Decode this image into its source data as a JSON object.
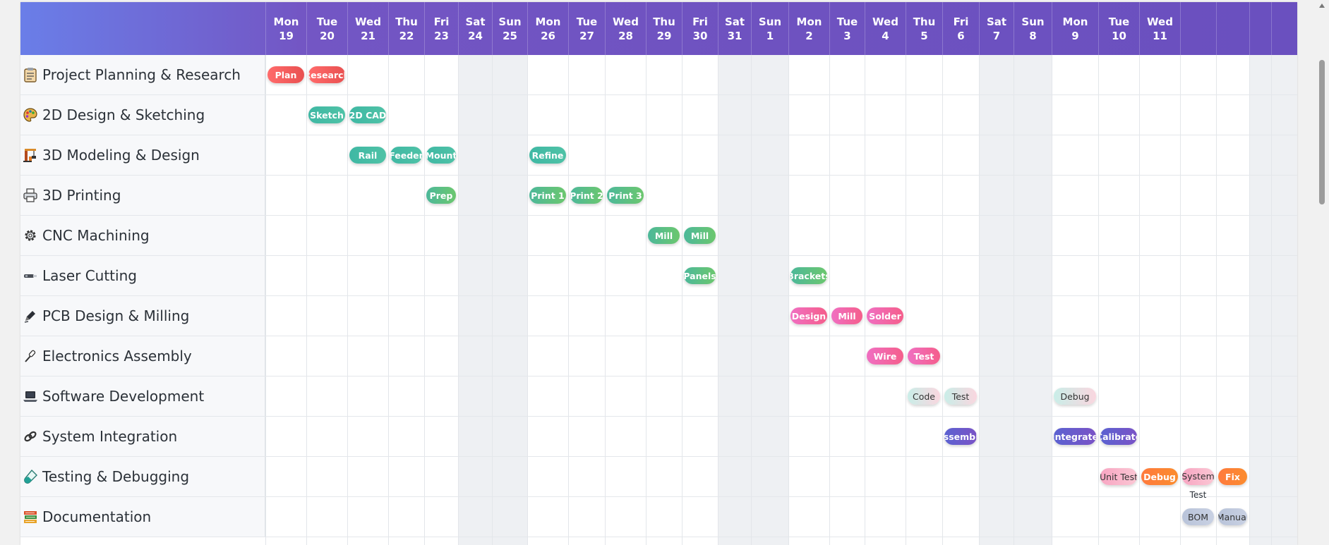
{
  "header_days": [
    {
      "dow": "Mon",
      "day": "19",
      "weekend": false
    },
    {
      "dow": "Tue",
      "day": "20",
      "weekend": false
    },
    {
      "dow": "Wed",
      "day": "21",
      "weekend": false
    },
    {
      "dow": "Thu",
      "day": "22",
      "weekend": false
    },
    {
      "dow": "Fri",
      "day": "23",
      "weekend": false
    },
    {
      "dow": "Sat",
      "day": "24",
      "weekend": true
    },
    {
      "dow": "Sun",
      "day": "25",
      "weekend": true
    },
    {
      "dow": "Mon",
      "day": "26",
      "weekend": false
    },
    {
      "dow": "Tue",
      "day": "27",
      "weekend": false
    },
    {
      "dow": "Wed",
      "day": "28",
      "weekend": false
    },
    {
      "dow": "Thu",
      "day": "29",
      "weekend": false
    },
    {
      "dow": "Fri",
      "day": "30",
      "weekend": false
    },
    {
      "dow": "Sat",
      "day": "31",
      "weekend": true
    },
    {
      "dow": "Sun",
      "day": "1",
      "weekend": true
    },
    {
      "dow": "Mon",
      "day": "2",
      "weekend": false
    },
    {
      "dow": "Tue",
      "day": "3",
      "weekend": false
    },
    {
      "dow": "Wed",
      "day": "4",
      "weekend": false
    },
    {
      "dow": "Thu",
      "day": "5",
      "weekend": false
    },
    {
      "dow": "Fri",
      "day": "6",
      "weekend": false
    },
    {
      "dow": "Sat",
      "day": "7",
      "weekend": true
    },
    {
      "dow": "Sun",
      "day": "8",
      "weekend": true
    },
    {
      "dow": "Mon",
      "day": "9",
      "weekend": false
    },
    {
      "dow": "Tue",
      "day": "10",
      "weekend": false
    },
    {
      "dow": "Wed",
      "day": "11",
      "weekend": false
    },
    {
      "dow": "",
      "day": "",
      "weekend": false
    },
    {
      "dow": "",
      "day": "",
      "weekend": false
    },
    {
      "dow": "",
      "day": "",
      "weekend": true
    },
    {
      "dow": "",
      "day": "",
      "weekend": true
    }
  ],
  "rows": [
    {
      "icon": "clipboard-icon",
      "label": "Project Planning & Research",
      "tasks": [
        {
          "label": "Plan",
          "day": 0,
          "color": "red"
        },
        {
          "label": "Research",
          "day": 1,
          "color": "red"
        }
      ]
    },
    {
      "icon": "palette-icon",
      "label": "2D Design & Sketching",
      "tasks": [
        {
          "label": "Sketch",
          "day": 1,
          "color": "teal"
        },
        {
          "label": "2D CAD",
          "day": 2,
          "color": "teal"
        }
      ]
    },
    {
      "icon": "crane-icon",
      "label": "3D Modeling & Design",
      "tasks": [
        {
          "label": "Rail",
          "day": 2,
          "color": "teal"
        },
        {
          "label": "Feeder",
          "day": 3,
          "color": "teal"
        },
        {
          "label": "Mount",
          "day": 4,
          "color": "teal"
        },
        {
          "label": "Refine",
          "day": 7,
          "color": "teal"
        }
      ]
    },
    {
      "icon": "printer-icon",
      "label": "3D Printing",
      "tasks": [
        {
          "label": "Prep",
          "day": 4,
          "color": "green"
        },
        {
          "label": "Print 1",
          "day": 7,
          "color": "green"
        },
        {
          "label": "Print 2",
          "day": 8,
          "color": "green"
        },
        {
          "label": "Print 3",
          "day": 9,
          "color": "green"
        }
      ]
    },
    {
      "icon": "gear-icon",
      "label": "CNC Machining",
      "tasks": [
        {
          "label": "Mill",
          "day": 10,
          "color": "green"
        },
        {
          "label": "Mill",
          "day": 11,
          "color": "green"
        }
      ]
    },
    {
      "icon": "laser-icon",
      "label": "Laser Cutting",
      "tasks": [
        {
          "label": "Panels",
          "day": 11,
          "color": "green"
        },
        {
          "label": "Brackets",
          "day": 14,
          "color": "green"
        }
      ]
    },
    {
      "icon": "pen-icon",
      "label": "PCB Design & Milling",
      "tasks": [
        {
          "label": "Design",
          "day": 14,
          "color": "pink"
        },
        {
          "label": "Mill",
          "day": 15,
          "color": "pink"
        },
        {
          "label": "Solder",
          "day": 16,
          "color": "pink"
        }
      ]
    },
    {
      "icon": "screwdriver-icon",
      "label": "Electronics Assembly",
      "tasks": [
        {
          "label": "Wire",
          "day": 16,
          "color": "pink"
        },
        {
          "label": "Test",
          "day": 17,
          "color": "pink"
        }
      ]
    },
    {
      "icon": "laptop-icon",
      "label": "Software Development",
      "tasks": [
        {
          "label": "Code",
          "day": 17,
          "color": "pale"
        },
        {
          "label": "Test",
          "day": 18,
          "color": "pale"
        },
        {
          "label": "Debug",
          "day": 21,
          "color": "pale"
        }
      ]
    },
    {
      "icon": "link-icon",
      "label": "System Integration",
      "tasks": [
        {
          "label": "Assemble",
          "day": 18,
          "color": "indigo"
        },
        {
          "label": "Integrate",
          "day": 21,
          "color": "indigo"
        },
        {
          "label": "Calibrate",
          "day": 22,
          "color": "indigo"
        }
      ]
    },
    {
      "icon": "test-tube-icon",
      "label": "Testing & Debugging",
      "tasks": [
        {
          "label": "Unit Test",
          "day": 22,
          "color": "rose"
        },
        {
          "label": "Debug",
          "day": 23,
          "color": "orange"
        },
        {
          "label": "System Test",
          "day": 24,
          "color": "rose",
          "wrap": true
        },
        {
          "label": "Fix",
          "day": 25,
          "color": "orange"
        }
      ]
    },
    {
      "icon": "books-icon",
      "label": "Documentation",
      "tasks": [
        {
          "label": "BOM",
          "day": 24,
          "color": "slate"
        },
        {
          "label": "Manual",
          "day": 25,
          "color": "slate"
        }
      ]
    }
  ]
}
